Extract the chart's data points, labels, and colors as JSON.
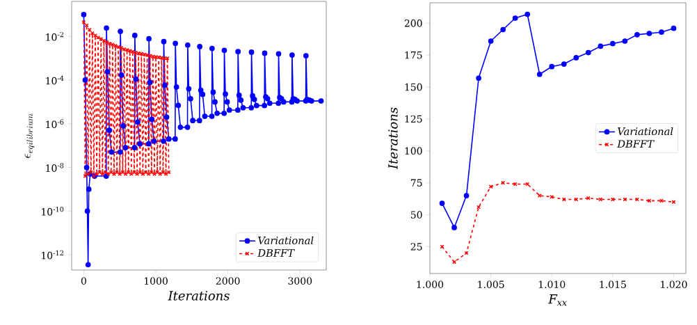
{
  "chart_data": [
    {
      "type": "line",
      "xlabel": "Iterations",
      "ylabel": "\\epsilon_{eqilibrium}",
      "log": "y",
      "legend": "bottom right",
      "xlim": [
        -168,
        3364
      ],
      "ylim": [
        2e-13,
        0.4
      ],
      "xticks": [
        0,
        1000,
        2000,
        3000
      ],
      "yticks": [
        {
          "value": 1e-12,
          "label": "10$^{-12}$"
        },
        {
          "value": 1e-10,
          "label": "10$^{-10}$"
        },
        {
          "value": 1e-08,
          "label": "10$^{-8}$"
        },
        {
          "value": 1e-06,
          "label": "10$^{-6}$"
        },
        {
          "value": 0.0001,
          "label": "10$^{-4}$"
        },
        {
          "value": 0.01,
          "label": "10$^{-2}$"
        }
      ],
      "series": [
        {
          "name": "Variational",
          "color": "#0000ff",
          "marker": "circle",
          "line_style": "solid",
          "x": [
            0,
            20,
            40,
            50,
            60,
            70,
            90,
            150,
            312,
            315,
            330,
            355,
            385,
            505,
            508,
            523,
            548,
            578,
            705,
            708,
            723,
            748,
            778,
            901,
            904,
            919,
            944,
            974,
            1107,
            1110,
            1125,
            1150,
            1180,
            1268,
            1271,
            1286,
            1311,
            1341,
            1439,
            1442,
            1457,
            1482,
            1512,
            1606,
            1609,
            1624,
            1649,
            1679,
            1777,
            1780,
            1795,
            1820,
            1850,
            1947,
            1950,
            1965,
            1990,
            2020,
            2137,
            2140,
            2155,
            2180,
            2210,
            2324,
            2327,
            2342,
            2367,
            2397,
            2507,
            2510,
            2525,
            2550,
            2580,
            2700,
            2703,
            2718,
            2743,
            2773,
            2887,
            2890,
            2905,
            2930,
            2960,
            3080,
            3083,
            3098,
            3130,
            3160,
            3292
          ],
          "values": [
            0.1,
            0.0001,
            1e-08,
            1e-10,
            3.5e-13,
            1e-09,
            5e-09,
            4e-09,
            4e-09,
            0.024,
            0.00024,
            5e-07,
            5e-08,
            5e-08,
            0.017,
            0.00017,
            8e-07,
            8e-08,
            8e-08,
            0.011,
            0.00011,
            1.2e-06,
            1.2e-07,
            1.2e-07,
            0.0078,
            7.8e-05,
            1.6e-06,
            1.6e-07,
            1.6e-07,
            0.0058,
            5.8e-05,
            2e-06,
            2e-07,
            2e-07,
            0.0048,
            4.8e-05,
            6.9e-06,
            6.9e-07,
            6.9e-07,
            0.004,
            4e-05,
            1.4e-05,
            1.4e-06,
            1.4e-06,
            0.0034,
            3.4e-05,
            2.2e-05,
            2.2e-06,
            2.2e-06,
            0.0028,
            2.8e-05,
            1e-05,
            3e-06,
            3e-06,
            0.0023,
            2.3e-05,
            1e-05,
            4.2e-06,
            4.2e-06,
            0.002,
            2e-05,
            1.2e-05,
            5.4e-06,
            5.4e-06,
            0.0019,
            1.9e-05,
            1.3e-05,
            6.8e-06,
            6.8e-06,
            0.0017,
            1.7e-05,
            1.4e-05,
            8.7e-06,
            8.7e-06,
            0.0016,
            1.6e-05,
            1.4e-05,
            1e-05,
            1e-05,
            0.0014,
            1.4e-05,
            1.3e-05,
            1.1e-05,
            1.1e-05,
            0.0013,
            1.3e-05,
            1.2e-05,
            1.1e-05,
            1.1e-05
          ]
        },
        {
          "name": "DBFFT",
          "color": "#ff0000",
          "marker": "cross",
          "line_style": "dashed",
          "x": [
            0,
            20,
            40,
            60,
            80,
            100,
            120,
            140,
            160,
            180,
            200,
            220,
            240,
            260,
            280,
            300,
            320,
            340,
            360,
            380,
            400,
            420,
            440,
            460,
            480,
            500,
            520,
            540,
            560,
            580,
            600,
            620,
            640,
            660,
            680,
            700,
            720,
            740,
            760,
            780,
            800,
            820,
            840,
            860,
            880,
            900,
            920,
            940,
            960,
            980,
            1000,
            1020,
            1040,
            1060,
            1080,
            1100,
            1120,
            1140,
            1160,
            1180
          ],
          "values": [
            0.045,
            4e-09,
            0.032,
            5e-09,
            0.02,
            6e-09,
            0.014,
            4e-09,
            0.011,
            5e-09,
            0.0089,
            6e-09,
            0.0076,
            5e-09,
            0.0063,
            6e-09,
            0.0054,
            5e-09,
            0.0047,
            6e-09,
            0.0042,
            5e-09,
            0.0037,
            6e-09,
            0.0033,
            5e-09,
            0.003,
            6e-09,
            0.0026,
            5e-09,
            0.0024,
            6e-09,
            0.0022,
            5e-09,
            0.002,
            6e-09,
            0.0018,
            5e-09,
            0.0017,
            6e-09,
            0.0016,
            5e-09,
            0.0015,
            6e-09,
            0.0014,
            5e-09,
            0.0013,
            6e-09,
            0.0012,
            5e-09,
            0.00115,
            6e-09,
            0.0011,
            5e-09,
            0.00105,
            6e-09,
            0.001,
            5e-09,
            0.001,
            6e-09
          ]
        }
      ]
    },
    {
      "type": "line",
      "xlabel": "F$_{xx}$",
      "ylabel": "Iterations",
      "legend": "right",
      "xlim": [
        1.0,
        1.021
      ],
      "ylim": [
        4,
        216
      ],
      "xticks": [
        {
          "value": 1.0,
          "label": "1.000"
        },
        {
          "value": 1.005,
          "label": "1.005"
        },
        {
          "value": 1.01,
          "label": "1.010"
        },
        {
          "value": 1.015,
          "label": "1.015"
        },
        {
          "value": 1.02,
          "label": "1.020"
        }
      ],
      "yticks": [
        25,
        50,
        75,
        100,
        125,
        150,
        175,
        200
      ],
      "x": [
        1.001,
        1.002,
        1.003,
        1.004,
        1.005,
        1.006,
        1.007,
        1.008,
        1.009,
        1.01,
        1.011,
        1.012,
        1.013,
        1.014,
        1.015,
        1.016,
        1.017,
        1.018,
        1.019,
        1.02
      ],
      "series": [
        {
          "name": "Variational",
          "color": "#0000ff",
          "marker": "circle",
          "line_style": "solid",
          "values": [
            59,
            40,
            65,
            157,
            186,
            195,
            204,
            207,
            160,
            166,
            168,
            173,
            177,
            182,
            184,
            186,
            191,
            192,
            193,
            196
          ]
        },
        {
          "name": "DBFFT",
          "color": "#ff0000",
          "marker": "cross",
          "line_style": "dashed",
          "values": [
            25,
            13,
            20,
            56,
            72,
            75,
            74,
            74,
            65,
            64,
            62,
            62,
            63,
            62,
            62,
            62,
            62,
            61,
            61,
            60
          ]
        }
      ]
    }
  ]
}
